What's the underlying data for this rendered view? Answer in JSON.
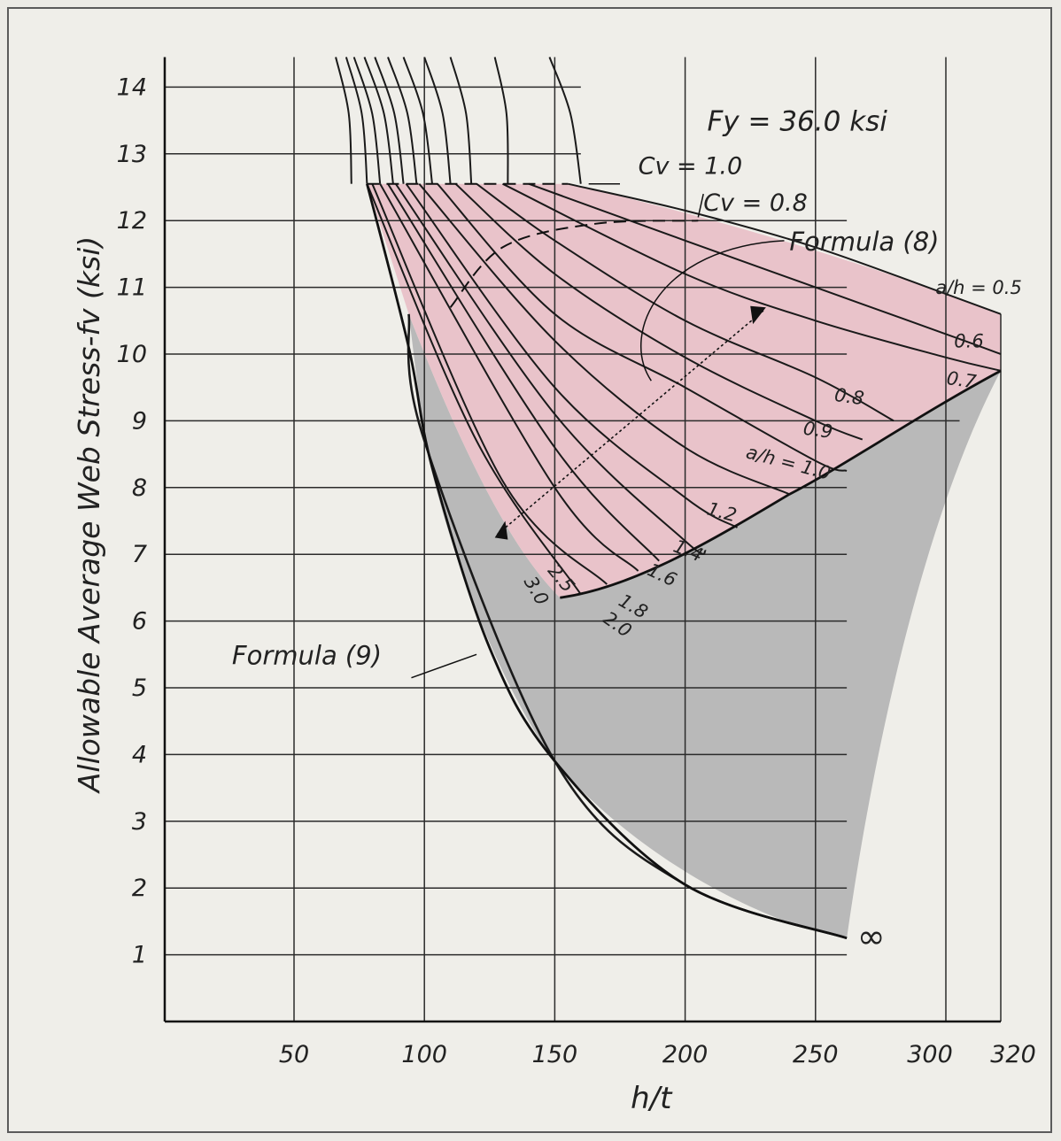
{
  "chart_data": {
    "type": "line",
    "title": "Fy = 36.0 ksi",
    "xlabel": "h/t",
    "ylabel": "Allowable Average Web Stress-fv (ksi)",
    "xlim": [
      0,
      320
    ],
    "ylim": [
      0,
      14
    ],
    "x_ticks": [
      "50",
      "100",
      "150",
      "200",
      "250",
      "300",
      "320"
    ],
    "y_ticks": [
      "1",
      "2",
      "3",
      "4",
      "5",
      "6",
      "7",
      "8",
      "9",
      "10",
      "11",
      "12",
      "13",
      "14"
    ],
    "grid": true,
    "annotations": {
      "cv1": "Cv = 1.0",
      "cv08": "Cv = 0.8",
      "formula8": "Formula (8)",
      "formula9": "Formula (9)",
      "infinity": "∞"
    },
    "series": [
      {
        "name": "a/h = 0.5",
        "label": "a/h = 0.5",
        "x": [
          155,
          200,
          250,
          300,
          320
        ],
        "y": [
          12.55,
          12.15,
          11.6,
          10.9,
          10.6
        ]
      },
      {
        "name": "0.6",
        "label": "0.6",
        "x": [
          140,
          200,
          250,
          300,
          320
        ],
        "y": [
          12.55,
          11.7,
          11.0,
          10.3,
          10.0
        ]
      },
      {
        "name": "0.7",
        "label": "0.7",
        "x": [
          130,
          200,
          250,
          300,
          320
        ],
        "y": [
          12.55,
          11.2,
          10.5,
          9.95,
          9.75
        ]
      },
      {
        "name": "0.8",
        "label": "0.8",
        "x": [
          120,
          150,
          200,
          250,
          280
        ],
        "y": [
          12.55,
          11.7,
          10.5,
          9.65,
          9.0
        ]
      },
      {
        "name": "0.9",
        "label": "0.9",
        "x": [
          112,
          150,
          200,
          250,
          268
        ],
        "y": [
          12.55,
          11.2,
          9.95,
          9.0,
          8.72
        ]
      },
      {
        "name": "a/h = 1.0",
        "label": "a/h = 1.0",
        "x": [
          105,
          150,
          200,
          250,
          262
        ],
        "y": [
          12.55,
          10.6,
          9.5,
          8.4,
          8.25
        ]
      },
      {
        "name": "1.2",
        "label": "1.2",
        "x": [
          98,
          150,
          200,
          240
        ],
        "y": [
          12.55,
          10.2,
          8.6,
          7.9
        ]
      },
      {
        "name": "1.4",
        "label": "1.4",
        "x": [
          93,
          150,
          200,
          220
        ],
        "y": [
          12.55,
          9.5,
          7.85,
          7.4
        ]
      },
      {
        "name": "1.6",
        "label": "1.6",
        "x": [
          89,
          150,
          200,
          208
        ],
        "y": [
          12.55,
          9.1,
          7.2,
          7.05
        ]
      },
      {
        "name": "1.8",
        "label": "1.8",
        "x": [
          86,
          150,
          190
        ],
        "y": [
          12.55,
          8.6,
          6.9
        ]
      },
      {
        "name": "2.0",
        "label": "2.0",
        "x": [
          83,
          150,
          182
        ],
        "y": [
          12.55,
          8.0,
          6.75
        ]
      },
      {
        "name": "2.5",
        "label": "2.5",
        "x": [
          80,
          130,
          170
        ],
        "y": [
          12.55,
          8.1,
          6.55
        ]
      },
      {
        "name": "3.0",
        "label": "3.0",
        "x": [
          78,
          120,
          160
        ],
        "y": [
          12.55,
          8.7,
          6.4
        ]
      },
      {
        "name": "∞",
        "label": "∞",
        "x": [
          94,
          100,
          150,
          200,
          262
        ],
        "y": [
          10.6,
          8.7,
          3.9,
          2.05,
          1.25
        ]
      }
    ]
  }
}
